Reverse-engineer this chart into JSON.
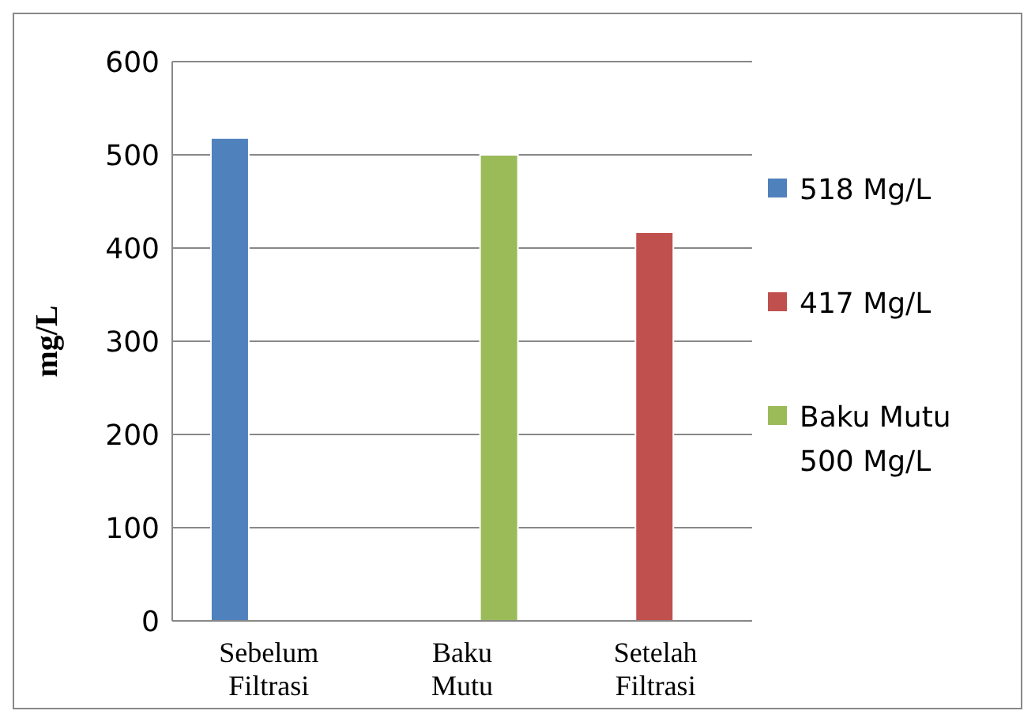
{
  "chart_data": {
    "type": "bar",
    "ylabel": "mg/L",
    "categories": [
      "Sebelum Filtrasi",
      "Baku Mutu",
      "Setelah Filtrasi"
    ],
    "series": [
      {
        "name": "518 Mg/L",
        "color": "#4f81bd",
        "values": [
          518,
          null,
          null
        ]
      },
      {
        "name": "417 Mg/L",
        "color": "#c0504d",
        "values": [
          null,
          null,
          417
        ]
      },
      {
        "name": "Baku Mutu 500 Mg/L",
        "color": "#9bbb59",
        "values": [
          null,
          500,
          null
        ]
      }
    ],
    "ylim": [
      0,
      600
    ],
    "yticks": [
      0,
      100,
      200,
      300,
      400,
      500,
      600
    ],
    "grid": "y",
    "legend": "right"
  }
}
